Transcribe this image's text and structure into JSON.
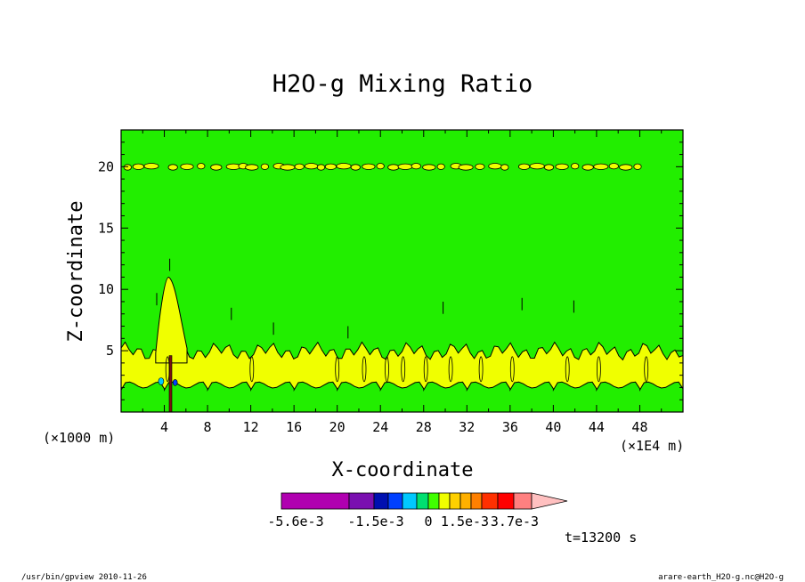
{
  "chart_data": {
    "type": "heatmap",
    "title": "H2O-g Mixing Ratio",
    "xlabel": "X-coordinate",
    "ylabel": "Z-coordinate",
    "x_unit_left": "(×1000 m)",
    "x_unit_right": "(×1E4 m)",
    "xlim": [
      0,
      52
    ],
    "ylim": [
      0,
      23
    ],
    "x_ticks": [
      4,
      8,
      12,
      16,
      20,
      24,
      28,
      32,
      36,
      40,
      44,
      48
    ],
    "y_ticks": [
      5,
      10,
      15,
      20
    ],
    "colorbar": {
      "levels": [
        "-5.6e-3",
        "-1.5e-3",
        "0",
        "1.5e-3",
        "3.7e-3"
      ],
      "colors": [
        "#b000b0",
        "#7a10b0",
        "#0010b0",
        "#0040ff",
        "#00c8ff",
        "#00e070",
        "#40ff00",
        "#f0ff00",
        "#ffd000",
        "#ffb000",
        "#ff8000",
        "#ff3000",
        "#ff0000",
        "#ff8080",
        "#ffc0c0"
      ]
    },
    "regions": [
      {
        "name": "background",
        "value_range": "0 to 1.5e-3",
        "color": "#22ee00"
      },
      {
        "name": "moist layer",
        "z_range": [
          2.2,
          5.3
        ],
        "color": "#f0ff00"
      },
      {
        "name": "near-surface layer",
        "z_range": [
          0,
          2.2
        ],
        "color": "#22ee00"
      },
      {
        "name": "upper band",
        "z": 20,
        "color": "#f0ff00"
      },
      {
        "name": "plume",
        "x": 4.5,
        "z_top": 11,
        "color": "#f0ff00"
      }
    ],
    "grid": false,
    "legend": "bottom"
  },
  "time_label": "t=13200 s",
  "footer_left": "/usr/bin/gpview  2010-11-26",
  "footer_right": "arare-earth_H2O-g.nc@H2O-g"
}
